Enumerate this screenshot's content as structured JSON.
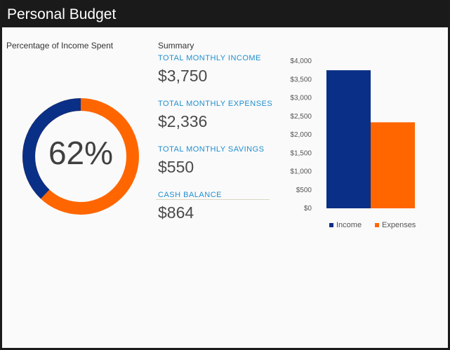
{
  "app": {
    "title": "Personal Budget"
  },
  "left_panel": {
    "heading": "Percentage of Income Spent",
    "percent_label": "62%",
    "percent_value": 62
  },
  "summary": {
    "heading": "Summary",
    "metrics": [
      {
        "label": "TOTAL MONTHLY INCOME",
        "value": "$3,750"
      },
      {
        "label": "TOTAL MONTHLY EXPENSES",
        "value": "$2,336"
      },
      {
        "label": "TOTAL MONTHLY SAVINGS",
        "value": "$550"
      },
      {
        "label": "CASH BALANCE",
        "value": "$864"
      }
    ]
  },
  "colors": {
    "income": "#0a2f86",
    "expenses": "#ff6600",
    "accent": "#1f8fcf"
  },
  "chart_data": {
    "type": "bar",
    "categories": [
      "Income",
      "Expenses"
    ],
    "values": [
      3750,
      2336
    ],
    "ylim": [
      0,
      4000
    ],
    "yticks": [
      {
        "value": 0,
        "label": "$0"
      },
      {
        "value": 500,
        "label": "$500"
      },
      {
        "value": 1000,
        "label": "$1,000"
      },
      {
        "value": 1500,
        "label": "$1,500"
      },
      {
        "value": 2000,
        "label": "$2,000"
      },
      {
        "value": 2500,
        "label": "$2,500"
      },
      {
        "value": 3000,
        "label": "$3,000"
      },
      {
        "value": 3500,
        "label": "$3,500"
      },
      {
        "value": 4000,
        "label": "$4,000"
      }
    ],
    "legend": [
      "Income",
      "Expenses"
    ],
    "legend_position": "bottom",
    "grid": false
  }
}
